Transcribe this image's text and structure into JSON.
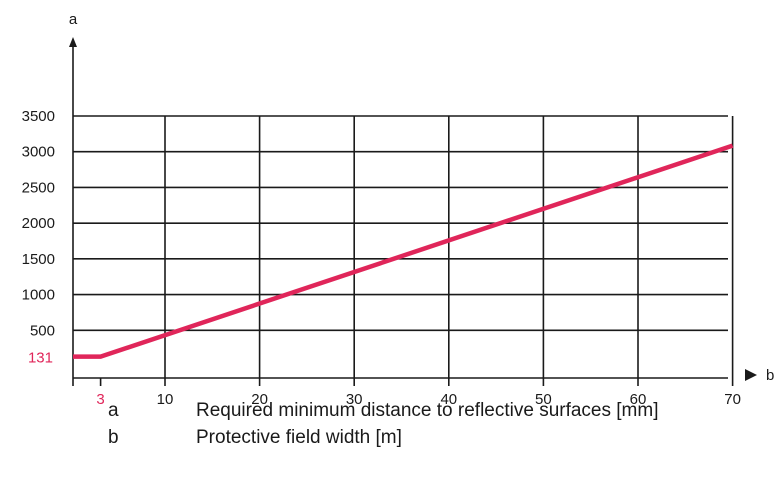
{
  "chart_data": {
    "type": "line",
    "y_axis_letter": "a",
    "x_axis_letter": "b",
    "yticks": [
      500,
      1000,
      1500,
      2000,
      2500,
      3000,
      3500
    ],
    "xticks": [
      10,
      20,
      30,
      40,
      50,
      60,
      70
    ],
    "highlight_y": 131,
    "highlight_x": 3,
    "ylim": [
      0,
      3500
    ],
    "xlim": [
      0,
      70
    ],
    "grid": true,
    "series": [
      {
        "color": "#e0265a",
        "points": [
          [
            0,
            131
          ],
          [
            3,
            131
          ],
          [
            70,
            3085
          ]
        ]
      }
    ]
  },
  "legend": [
    {
      "key": "a",
      "text": "Required minimum distance to reflective surfaces [mm]"
    },
    {
      "key": "b",
      "text": "Protective field width [m]"
    }
  ],
  "colors": {
    "accent": "#e0265a",
    "axis": "#1a1a1a"
  }
}
